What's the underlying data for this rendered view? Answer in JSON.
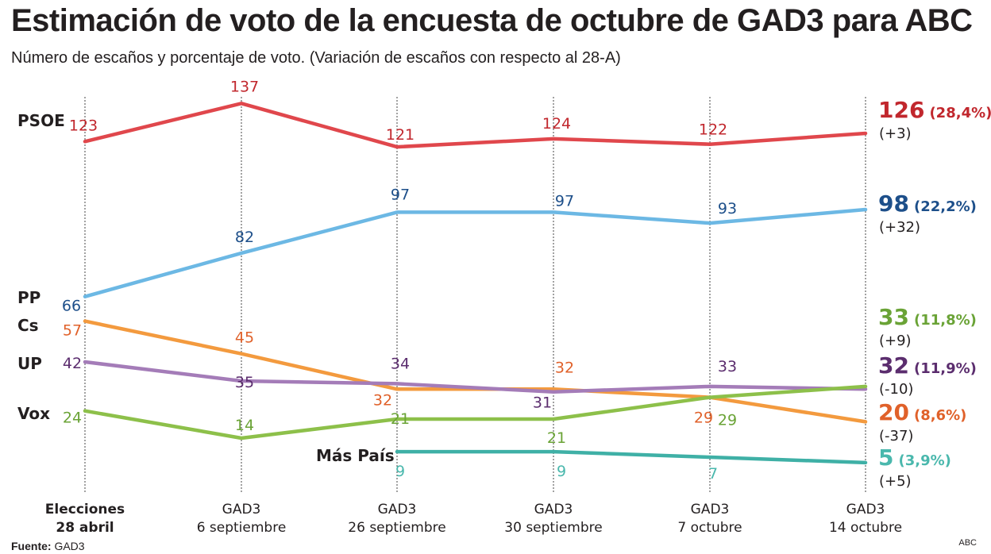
{
  "title": "Estimación de voto de la encuesta de octubre de GAD3 para ABC",
  "subtitle": "Número de escaños y porcentaje de voto. (Variación de escaños con respecto al 28-A)",
  "source_label": "Fuente:",
  "source_value": "GAD3",
  "credit": "ABC",
  "chart_data": {
    "type": "line",
    "categories": [
      {
        "line1": "Elecciones",
        "line2": "28 abril",
        "bold": true
      },
      {
        "line1": "GAD3",
        "line2": "6 septiembre",
        "bold": false
      },
      {
        "line1": "GAD3",
        "line2": "26 septiembre",
        "bold": false
      },
      {
        "line1": "GAD3",
        "line2": "30 septiembre",
        "bold": false
      },
      {
        "line1": "GAD3",
        "line2": "7 octubre",
        "bold": false
      },
      {
        "line1": "GAD3",
        "line2": "14 octubre",
        "bold": false
      }
    ],
    "series": [
      {
        "name": "PSOE",
        "color": "#e0474c",
        "label_color": "#c1272d",
        "values": [
          123,
          137,
          121,
          124,
          122,
          126
        ],
        "final": {
          "seats": "126",
          "pct": "(28,4%)",
          "diff": "(+3)"
        }
      },
      {
        "name": "PP",
        "color": "#6cb8e4",
        "label_color": "#1d4f8a",
        "values": [
          66,
          82,
          97,
          97,
          93,
          98
        ],
        "final": {
          "seats": "98",
          "pct": "(22,2%)",
          "diff": "(+32)"
        }
      },
      {
        "name": "Cs",
        "color": "#f39a3e",
        "label_color": "#e0612a",
        "values": [
          57,
          45,
          32,
          32,
          29,
          20
        ],
        "final": {
          "seats": "20",
          "pct": "(8,6%)",
          "diff": "(-37)"
        }
      },
      {
        "name": "UP",
        "color": "#a47cb8",
        "label_color": "#5b2d6e",
        "values": [
          42,
          35,
          34,
          31,
          33,
          32
        ],
        "final": {
          "seats": "32",
          "pct": "(11,9%)",
          "diff": "(-10)"
        }
      },
      {
        "name": "Vox",
        "color": "#8dc04a",
        "label_color": "#6aa336",
        "values": [
          24,
          14,
          21,
          21,
          29,
          33
        ],
        "final": {
          "seats": "33",
          "pct": "(11,8%)",
          "diff": "(+9)"
        }
      },
      {
        "name": "Más País",
        "color": "#3fb0a6",
        "label_color": "#4ab8ad",
        "values": [
          null,
          null,
          9,
          9,
          7,
          5
        ],
        "final": {
          "seats": "5",
          "pct": "(3,9%)",
          "diff": "(+5)"
        }
      }
    ],
    "ylim": [
      0,
      140
    ],
    "grid": "dotted vertical guides at each date",
    "legend": "party names at left"
  }
}
